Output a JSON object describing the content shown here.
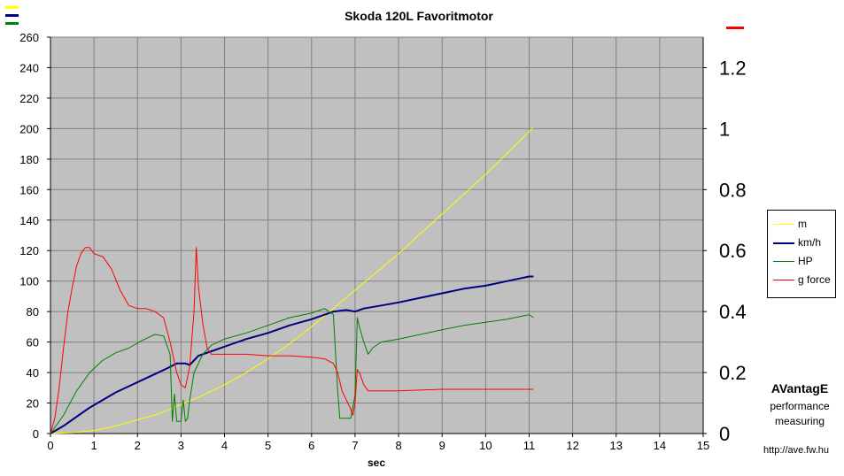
{
  "chart_data": {
    "type": "line",
    "title": "Skoda 120L Favoritmotor",
    "xlabel": "sec",
    "xlim": [
      0,
      15
    ],
    "ylim_left": [
      0,
      260
    ],
    "ylim_right": [
      0,
      1.3
    ],
    "x_ticks": [
      "0",
      "1",
      "2",
      "3",
      "4",
      "5",
      "6",
      "7",
      "8",
      "9",
      "10",
      "11",
      "12",
      "13",
      "14",
      "15"
    ],
    "y_ticks_left": [
      "0",
      "20",
      "40",
      "60",
      "80",
      "100",
      "120",
      "140",
      "160",
      "180",
      "200",
      "220",
      "240",
      "260"
    ],
    "y_ticks_right": [
      "0",
      "0.2",
      "0.4",
      "0.6",
      "0.8",
      "1",
      "1.2"
    ],
    "grid": true,
    "legend_position": "right",
    "series": [
      {
        "name": "m",
        "color": "#ffff00",
        "axis": "left",
        "x": [
          0,
          0.5,
          1,
          1.5,
          2,
          2.5,
          3,
          3.5,
          4,
          4.5,
          5,
          5.5,
          6,
          6.5,
          7,
          7.5,
          8,
          8.5,
          9,
          9.5,
          10,
          10.5,
          11,
          11.1
        ],
        "y": [
          0,
          0.5,
          2,
          5,
          9,
          13,
          19,
          25,
          32,
          40,
          49,
          59,
          70,
          82,
          94,
          106,
          118,
          131,
          144,
          157,
          170,
          184,
          198,
          201
        ]
      },
      {
        "name": "km/h",
        "color": "#000080",
        "axis": "left",
        "x": [
          0,
          0.3,
          0.6,
          0.9,
          1.2,
          1.5,
          1.8,
          2.1,
          2.4,
          2.7,
          2.9,
          3.1,
          3.2,
          3.4,
          3.7,
          4,
          4.5,
          5,
          5.5,
          6,
          6.5,
          6.8,
          7,
          7.2,
          7.6,
          8,
          8.5,
          9,
          9.5,
          10,
          10.5,
          11,
          11.1
        ],
        "y": [
          0,
          5,
          11,
          17,
          22,
          27,
          31,
          35,
          39,
          43,
          46,
          46,
          45,
          51,
          54,
          57,
          62,
          66,
          71,
          75,
          80,
          81,
          80,
          82,
          84,
          86,
          89,
          92,
          95,
          97,
          100,
          103,
          103
        ]
      },
      {
        "name": "HP",
        "color": "#008000",
        "axis": "left",
        "x": [
          0,
          0.3,
          0.6,
          0.9,
          1.2,
          1.5,
          1.8,
          2.1,
          2.4,
          2.6,
          2.75,
          2.8,
          2.85,
          2.9,
          3.0,
          3.05,
          3.1,
          3.15,
          3.2,
          3.3,
          3.5,
          3.7,
          4,
          4.5,
          5,
          5.5,
          6,
          6.3,
          6.5,
          6.6,
          6.65,
          6.7,
          6.8,
          6.9,
          7.0,
          7.05,
          7.1,
          7.2,
          7.3,
          7.4,
          7.6,
          8,
          8.5,
          9,
          9.5,
          10,
          10.5,
          11,
          11.1
        ],
        "y": [
          0,
          12,
          28,
          40,
          48,
          53,
          56,
          61,
          65,
          64,
          52,
          8,
          26,
          8,
          8,
          22,
          8,
          10,
          22,
          40,
          52,
          58,
          62,
          66,
          71,
          76,
          79,
          82,
          78,
          28,
          10,
          10,
          10,
          10,
          25,
          76,
          70,
          60,
          52,
          56,
          60,
          62,
          65,
          68,
          71,
          73,
          75,
          78,
          76
        ]
      },
      {
        "name": "g force",
        "color": "#ff0000",
        "axis": "right",
        "x": [
          0,
          0.1,
          0.2,
          0.3,
          0.4,
          0.5,
          0.6,
          0.7,
          0.8,
          0.9,
          1.0,
          1.2,
          1.4,
          1.6,
          1.8,
          2.0,
          2.2,
          2.4,
          2.6,
          2.75,
          2.9,
          3.0,
          3.1,
          3.2,
          3.3,
          3.35,
          3.4,
          3.5,
          3.6,
          3.7,
          3.8,
          4.0,
          4.5,
          5.0,
          5.5,
          6.0,
          6.3,
          6.5,
          6.6,
          6.7,
          6.8,
          6.9,
          6.95,
          7.0,
          7.05,
          7.1,
          7.2,
          7.3,
          7.5,
          8,
          9,
          10,
          11,
          11.1
        ],
        "y": [
          0,
          0.05,
          0.15,
          0.28,
          0.4,
          0.48,
          0.55,
          0.59,
          0.61,
          0.61,
          0.59,
          0.58,
          0.54,
          0.47,
          0.42,
          0.41,
          0.41,
          0.4,
          0.38,
          0.3,
          0.2,
          0.16,
          0.15,
          0.22,
          0.4,
          0.61,
          0.48,
          0.36,
          0.28,
          0.26,
          0.26,
          0.26,
          0.26,
          0.255,
          0.255,
          0.25,
          0.245,
          0.23,
          0.2,
          0.14,
          0.11,
          0.08,
          0.06,
          0.1,
          0.21,
          0.2,
          0.16,
          0.14,
          0.14,
          0.14,
          0.145,
          0.145,
          0.145,
          0.145
        ]
      }
    ]
  },
  "legend": {
    "items": [
      {
        "label": "m",
        "color": "#ffff00",
        "width": 1
      },
      {
        "label": "km/h",
        "color": "#000080",
        "width": 2
      },
      {
        "label": "HP",
        "color": "#008000",
        "width": 1
      },
      {
        "label": "g force",
        "color": "#ff0000",
        "width": 1
      }
    ]
  },
  "branding": {
    "name": "AVantagE",
    "tagline1": "performance",
    "tagline2": "measuring",
    "url": "http://ave.fw.hu"
  },
  "colors": {
    "plot_bg": "#c0c0c0",
    "grid": "#808080"
  }
}
